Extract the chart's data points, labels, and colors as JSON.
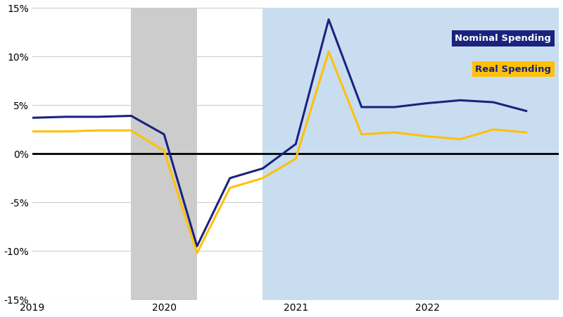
{
  "nominal_x": [
    2019.0,
    2019.25,
    2019.5,
    2019.75,
    2020.0,
    2020.25,
    2020.5,
    2020.75,
    2021.0,
    2021.25,
    2021.5,
    2021.75,
    2022.0,
    2022.25,
    2022.5,
    2022.75
  ],
  "nominal_y": [
    3.7,
    3.8,
    3.8,
    3.9,
    2.0,
    -9.5,
    -2.5,
    -1.5,
    1.0,
    13.8,
    4.8,
    4.8,
    5.2,
    5.5,
    5.3,
    4.4
  ],
  "real_x": [
    2019.0,
    2019.25,
    2019.5,
    2019.75,
    2020.0,
    2020.25,
    2020.5,
    2020.75,
    2021.0,
    2021.25,
    2021.5,
    2021.75,
    2022.0,
    2022.25,
    2022.5,
    2022.75
  ],
  "real_y": [
    2.3,
    2.3,
    2.4,
    2.4,
    0.3,
    -10.2,
    -3.5,
    -2.5,
    -0.5,
    10.5,
    2.0,
    2.2,
    1.8,
    1.5,
    2.5,
    2.2
  ],
  "nominal_color": "#1a237e",
  "real_color": "#FFC107",
  "recession_start": 2019.75,
  "recession_end": 2020.25,
  "recovery_start": 2020.75,
  "recovery_end": 2023.0,
  "recession_color": "#CCCCCC",
  "recovery_color": "#c9ddf0",
  "zero_line_color": "#000000",
  "background_color": "#ffffff",
  "xlim": [
    2019.0,
    2023.0
  ],
  "ylim": [
    -15,
    15
  ],
  "yticks": [
    -15,
    -10,
    -5,
    0,
    5,
    10,
    15
  ],
  "xtick_positions": [
    2019,
    2020,
    2021,
    2022
  ],
  "xtick_labels": [
    "2019",
    "2020",
    "2021",
    "2022"
  ],
  "legend_nominal_label": "Nominal Spending",
  "legend_real_label": "Real Spending",
  "legend_nominal_bg": "#1a237e",
  "legend_nominal_text_color": "#ffffff",
  "legend_real_bg": "#FFC107",
  "legend_real_text_color": "#1a237e",
  "line_width": 2.2,
  "grid_color": "#cccccc",
  "grid_linewidth": 0.8
}
